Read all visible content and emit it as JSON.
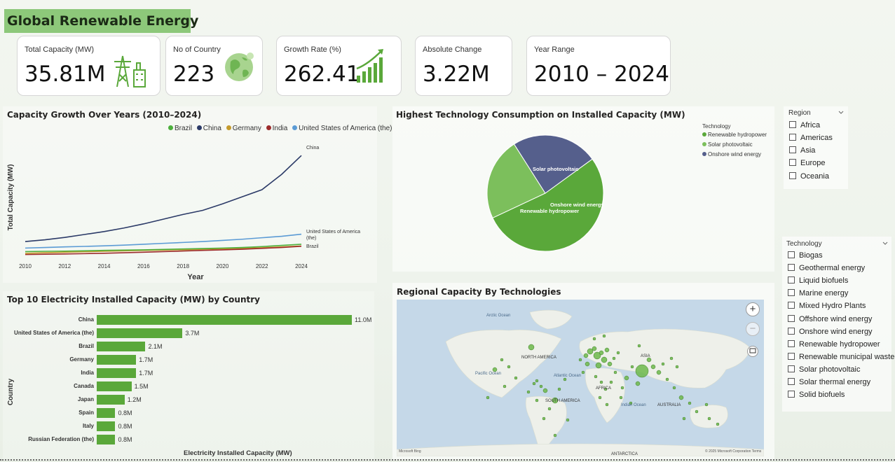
{
  "header": {
    "title": "Global Renewable Energy"
  },
  "kpis": [
    {
      "label": "Total Capacity (MW)",
      "value": "35.81M",
      "icon": "power-tower-icon"
    },
    {
      "label": "No of Country",
      "value": "223",
      "icon": "globe-icon"
    },
    {
      "label": "Growth Rate (%)",
      "value": "262.41",
      "icon": "growth-chart-icon"
    },
    {
      "label": "Absolute Change",
      "value": "3.22M",
      "icon": ""
    },
    {
      "label": "Year Range",
      "value": "2010 – 2024",
      "icon": ""
    }
  ],
  "line_chart": {
    "title": "Capacity Growth Over Years (2010–2024)",
    "ylabel": "Total Capacity (MW)",
    "xlabel": "Year",
    "x_ticks": [
      "2010",
      "2012",
      "2014",
      "2016",
      "2018",
      "2020",
      "2022",
      "2024"
    ],
    "end_labels": {
      "china": "China",
      "usa_line1": "United States of America",
      "usa_line2": "(the)",
      "brazil": "Brazil"
    }
  },
  "pie_chart": {
    "title": "Highest Technology Consumption on Installed Capacity (MW)",
    "legend_title": "Technology",
    "slice_labels": {
      "hydro": "Renewable hydropower",
      "solar": "Solar photovoltaic",
      "wind": "Onshore wind energy"
    }
  },
  "bar_chart": {
    "title": "Top 10 Electricity Installed Capacity (MW) by Country",
    "ylabel": "Country",
    "xlabel": "Electricity Installed Capacity (MW)"
  },
  "map": {
    "title": "Regional Capacity By Technologies",
    "labels": {
      "arctic": "Arctic Ocean",
      "north_america": "NORTH AMERICA",
      "south_america": "SOUTH AMERICA",
      "atlantic": "Atlantic Ocean",
      "pacific": "Pacific Ocean",
      "indian": "Indian Ocean",
      "asia": "ASIA",
      "africa": "AFRICA",
      "australia": "AUSTRALIA",
      "antarctica": "ANTARCTICA",
      "attribution_left": "Microsoft Bing",
      "attribution_right": "© 2025 Microsoft Corporation  Terms"
    },
    "controls": {
      "zoom_in": "+",
      "zoom_out": "−"
    }
  },
  "region_slicer": {
    "title": "Region",
    "items": [
      "Africa",
      "Americas",
      "Asia",
      "Europe",
      "Oceania"
    ]
  },
  "tech_slicer": {
    "title": "Technology",
    "items": [
      "Biogas",
      "Geothermal energy",
      "Liquid biofuels",
      "Marine energy",
      "Mixed Hydro Plants",
      "Offshore wind energy",
      "Onshore wind energy",
      "Renewable hydropower",
      "Renewable municipal waste",
      "Solar photovoltaic",
      "Solar thermal energy",
      "Solid biofuels"
    ]
  },
  "colors": {
    "accent_green": "#5aa83a",
    "title_bar": "#8dc87a",
    "brazil": "#4caf3c",
    "china": "#2b3a67",
    "germany": "#c49a2c",
    "india": "#9c2b2b",
    "usa": "#5b9bd5",
    "pie_hydro": "#5aa83a",
    "pie_solar": "#7cbf5c",
    "pie_wind": "#555f8c"
  },
  "chart_data": [
    {
      "type": "line",
      "title": "Capacity Growth Over Years (2010–2024)",
      "xlabel": "Year",
      "ylabel": "Total Capacity (MW)",
      "x": [
        2010,
        2011,
        2012,
        2013,
        2014,
        2015,
        2016,
        2017,
        2018,
        2019,
        2020,
        2021,
        2022,
        2023,
        2024
      ],
      "ylim": [
        0,
        1900000
      ],
      "series": [
        {
          "name": "Brazil",
          "values": [
            90000,
            95000,
            98000,
            103000,
            110000,
            115000,
            120000,
            127000,
            135000,
            142000,
            150000,
            160000,
            175000,
            195000,
            215000
          ]
        },
        {
          "name": "China",
          "values": [
            260000,
            290000,
            330000,
            380000,
            430000,
            490000,
            560000,
            640000,
            720000,
            790000,
            900000,
            1020000,
            1140000,
            1400000,
            1720000
          ]
        },
        {
          "name": "Germany",
          "values": [
            60000,
            70000,
            80000,
            88000,
            95000,
            103000,
            110000,
            117000,
            123000,
            130000,
            138000,
            145000,
            155000,
            170000,
            185000
          ]
        },
        {
          "name": "India",
          "values": [
            40000,
            45000,
            50000,
            55000,
            62000,
            70000,
            80000,
            90000,
            100000,
            110000,
            120000,
            130000,
            145000,
            160000,
            180000
          ]
        },
        {
          "name": "United States of America (the)",
          "values": [
            150000,
            160000,
            170000,
            178000,
            188000,
            200000,
            215000,
            230000,
            245000,
            260000,
            280000,
            300000,
            325000,
            350000,
            385000
          ]
        }
      ]
    },
    {
      "type": "pie",
      "title": "Highest Technology Consumption on Installed Capacity (MW)",
      "categories": [
        "Renewable hydropower",
        "Solar photovoltaic",
        "Onshore wind energy"
      ],
      "values": [
        53,
        23,
        24
      ]
    },
    {
      "type": "bar",
      "title": "Top 10 Electricity Installed Capacity (MW) by Country",
      "xlabel": "Electricity Installed Capacity (MW)",
      "ylabel": "Country",
      "categories": [
        "China",
        "United States of America (the)",
        "Brazil",
        "Germany",
        "India",
        "Canada",
        "Japan",
        "Spain",
        "Italy",
        "Russian Federation (the)"
      ],
      "values": [
        11.0,
        3.7,
        2.1,
        1.7,
        1.7,
        1.5,
        1.2,
        0.8,
        0.8,
        0.8
      ],
      "value_labels": [
        "11.0M",
        "3.7M",
        "2.1M",
        "1.7M",
        "1.7M",
        "1.5M",
        "1.2M",
        "0.8M",
        "0.8M",
        "0.8M"
      ],
      "xlim": [
        0,
        11.0
      ]
    }
  ]
}
